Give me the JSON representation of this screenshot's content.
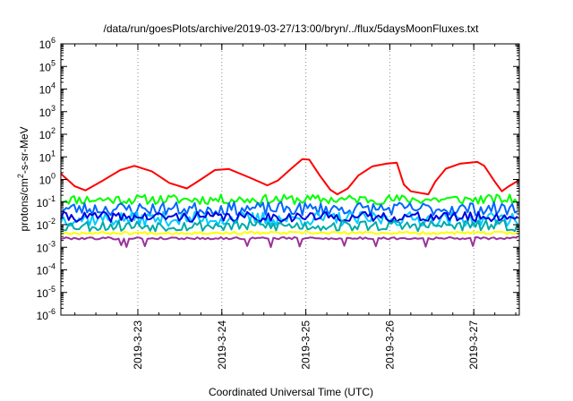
{
  "chart_data": {
    "type": "line",
    "title": "/data/run/goesPlots/archive/2019-03-27/13:00/bryn/../flux/5daysMoonFluxes.txt",
    "xlabel": "Coordinated Universal Time (UTC)",
    "ylabel": {
      "pre": "protons/cm",
      "sup": "2",
      "post": "-s-sr-MeV"
    },
    "yscale": "log",
    "ylim": [
      1e-06,
      1000000.0
    ],
    "y_ticks": [
      {
        "exp": -6,
        "base": "10",
        "sup": "-6"
      },
      {
        "exp": -5,
        "base": "10",
        "sup": "-5"
      },
      {
        "exp": -4,
        "base": "10",
        "sup": "-4"
      },
      {
        "exp": -3,
        "base": "10",
        "sup": "-3"
      },
      {
        "exp": -2,
        "base": "10",
        "sup": "-2"
      },
      {
        "exp": -1,
        "base": "10",
        "sup": "-1"
      },
      {
        "exp": 0,
        "base": "10",
        "sup": "0"
      },
      {
        "exp": 1,
        "base": "10",
        "sup": "1"
      },
      {
        "exp": 2,
        "base": "10",
        "sup": "2"
      },
      {
        "exp": 3,
        "base": "10",
        "sup": "3"
      },
      {
        "exp": 4,
        "base": "10",
        "sup": "4"
      },
      {
        "exp": 5,
        "base": "10",
        "sup": "5"
      },
      {
        "exp": 6,
        "base": "10",
        "sup": "6"
      }
    ],
    "xlim": [
      "2019-03-22 02:00",
      "2019-03-27 13:00"
    ],
    "x_ticks": [
      "2019-3-23",
      "2019-3-24",
      "2019-3-25",
      "2019-3-26",
      "2019-3-27"
    ],
    "x_tick_dates": [
      "2019-03-23 00:00",
      "2019-03-24 00:00",
      "2019-03-25 00:00",
      "2019-03-26 00:00",
      "2019-03-27 00:00"
    ],
    "grid": "x dotted",
    "series": [
      {
        "color": "#ff0000",
        "points": [
          [
            "2019-03-22 02:00",
            1.8
          ],
          [
            "2019-03-22 06:00",
            0.5
          ],
          [
            "2019-03-22 09:00",
            0.33
          ],
          [
            "2019-03-22 14:00",
            0.9
          ],
          [
            "2019-03-22 19:00",
            2.6
          ],
          [
            "2019-03-22 23:00",
            4.0
          ],
          [
            "2019-03-23 04:00",
            2.3
          ],
          [
            "2019-03-23 09:00",
            0.7
          ],
          [
            "2019-03-23 14:00",
            0.4
          ],
          [
            "2019-03-23 18:00",
            1.0
          ],
          [
            "2019-03-23 22:00",
            2.6
          ],
          [
            "2019-03-24 02:00",
            2.9
          ],
          [
            "2019-03-24 08:00",
            1.2
          ],
          [
            "2019-03-24 13:00",
            0.55
          ],
          [
            "2019-03-24 16:00",
            0.9
          ],
          [
            "2019-03-24 20:00",
            3.2
          ],
          [
            "2019-03-24 23:00",
            8.0
          ],
          [
            "2019-03-25 01:00",
            7.5
          ],
          [
            "2019-03-25 04:00",
            1.5
          ],
          [
            "2019-03-25 07:00",
            0.35
          ],
          [
            "2019-03-25 09:00",
            0.22
          ],
          [
            "2019-03-25 12:00",
            0.4
          ],
          [
            "2019-03-25 15:00",
            1.5
          ],
          [
            "2019-03-25 19:00",
            3.8
          ],
          [
            "2019-03-25 23:00",
            5.0
          ],
          [
            "2019-03-26 02:00",
            5.5
          ],
          [
            "2019-03-26 04:00",
            0.6
          ],
          [
            "2019-03-26 06:00",
            0.3
          ],
          [
            "2019-03-26 11:00",
            0.22
          ],
          [
            "2019-03-26 13:00",
            0.8
          ],
          [
            "2019-03-26 16:00",
            3.0
          ],
          [
            "2019-03-26 20:00",
            5.0
          ],
          [
            "2019-03-27 01:00",
            6.0
          ],
          [
            "2019-03-27 03:00",
            4.0
          ],
          [
            "2019-03-27 06:00",
            0.8
          ],
          [
            "2019-03-27 08:00",
            0.3
          ],
          [
            "2019-03-27 10:00",
            0.5
          ],
          [
            "2019-03-27 13:00",
            0.95
          ]
        ]
      },
      {
        "color": "#00ff00",
        "base": 0.13,
        "spread": 0.22,
        "seed": 11
      },
      {
        "color": "#0066ff",
        "base": 0.05,
        "spread": 0.3,
        "seed": 23
      },
      {
        "color": "#00ccff",
        "base": 0.018,
        "spread": 0.32,
        "seed": 37
      },
      {
        "color": "#0000dd",
        "base": 0.022,
        "spread": 0.22,
        "seed": 41
      },
      {
        "color": "#00aaaa",
        "base": 0.009,
        "spread": 0.25,
        "seed": 53
      },
      {
        "color": "#ffff00",
        "base": 0.0043,
        "spread": 0.06,
        "seed": 67
      },
      {
        "color": "#993399",
        "base": 0.0025,
        "spread": 0.05,
        "seed": 79,
        "dips": [
          "2019-03-22 19:00",
          "2019-03-22 21:00",
          "2019-03-23 02:00",
          "2019-03-24 07:00",
          "2019-03-24 14:00",
          "2019-03-24 22:00",
          "2019-03-25 11:00",
          "2019-03-25 20:00",
          "2019-03-26 10:00",
          "2019-03-27 00:00"
        ]
      }
    ]
  }
}
